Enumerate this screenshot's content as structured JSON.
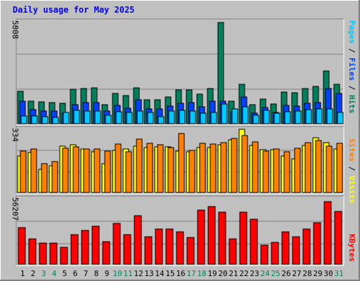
{
  "title": "Daily usage for May 2025",
  "colors": {
    "background": "#c0c0c0",
    "hits": "#00805c",
    "files": "#0040ff",
    "pages": "#00c8ff",
    "visits": "#ffff00",
    "sites": "#ff8000",
    "kbytes": "#ff0000",
    "title": "#0000ff",
    "weekend_label": "#00805c",
    "weekday_label": "#000000"
  },
  "legend": {
    "top": [
      "Pages",
      "Files",
      "Hits"
    ],
    "middle": [
      "Sites",
      "Visits"
    ],
    "bottom": [
      "KBytes"
    ]
  },
  "chart_data": [
    {
      "type": "bar",
      "panel": "hits-files-pages",
      "categories": [
        "1",
        "2",
        "3",
        "4",
        "5",
        "6",
        "7",
        "8",
        "9",
        "10",
        "11",
        "12",
        "13",
        "14",
        "15",
        "16",
        "17",
        "18",
        "19",
        "20",
        "21",
        "22",
        "23",
        "24",
        "25",
        "26",
        "27",
        "28",
        "29",
        "30",
        "31"
      ],
      "ymax_label": "5808",
      "ylim": [
        0,
        5808
      ],
      "series": [
        {
          "name": "Hits",
          "values": [
            1820,
            1260,
            1220,
            1190,
            1140,
            1920,
            1960,
            2030,
            1080,
            1700,
            1580,
            2000,
            1340,
            1350,
            1490,
            1900,
            1880,
            1660,
            1980,
            5680,
            1270,
            2200,
            1070,
            1390,
            1100,
            1770,
            1720,
            1960,
            2090,
            2960,
            2210
          ]
        },
        {
          "name": "Files",
          "values": [
            1260,
            800,
            700,
            700,
            600,
            1050,
            1170,
            1170,
            700,
            1040,
            870,
            1330,
            830,
            830,
            990,
            1140,
            1170,
            940,
            1250,
            1270,
            670,
            1520,
            600,
            890,
            620,
            1040,
            980,
            1140,
            1180,
            1980,
            1710
          ]
        },
        {
          "name": "Pages",
          "values": [
            420,
            440,
            400,
            350,
            640,
            740,
            700,
            720,
            470,
            670,
            630,
            730,
            620,
            400,
            730,
            770,
            710,
            610,
            650,
            1120,
            820,
            930,
            470,
            750,
            600,
            690,
            720,
            790,
            820,
            830,
            650
          ]
        }
      ],
      "grid": true
    },
    {
      "type": "bar",
      "panel": "visits-sites",
      "categories": [
        "1",
        "2",
        "3",
        "4",
        "5",
        "6",
        "7",
        "8",
        "9",
        "10",
        "11",
        "12",
        "13",
        "14",
        "15",
        "16",
        "17",
        "18",
        "19",
        "20",
        "21",
        "22",
        "23",
        "24",
        "25",
        "26",
        "27",
        "28",
        "29",
        "30",
        "31"
      ],
      "ymax_label": "334",
      "ylim": [
        0,
        334
      ],
      "series": [
        {
          "name": "Visits",
          "values": [
            190,
            210,
            122,
            140,
            242,
            249,
            229,
            212,
            152,
            222,
            226,
            244,
            236,
            240,
            240,
            217,
            214,
            234,
            236,
            249,
            274,
            331,
            247,
            223,
            224,
            190,
            176,
            245,
            286,
            262,
            226
          ]
        },
        {
          "name": "Sites",
          "values": [
            216,
            228,
            152,
            160,
            230,
            238,
            228,
            228,
            216,
            254,
            212,
            278,
            258,
            248,
            236,
            310,
            220,
            258,
            254,
            260,
            282,
            298,
            264,
            218,
            226,
            214,
            232,
            262,
            272,
            241,
            258
          ]
        }
      ],
      "grid": true
    },
    {
      "type": "bar",
      "panel": "kbytes",
      "categories": [
        "1",
        "2",
        "3",
        "4",
        "5",
        "6",
        "7",
        "8",
        "9",
        "10",
        "11",
        "12",
        "13",
        "14",
        "15",
        "16",
        "17",
        "18",
        "19",
        "20",
        "21",
        "22",
        "23",
        "24",
        "25",
        "26",
        "27",
        "28",
        "29",
        "30",
        "31"
      ],
      "ymax_label": "56207",
      "ylim": [
        0,
        56207
      ],
      "series": [
        {
          "name": "KBytes",
          "values": [
            31200,
            21800,
            18400,
            18000,
            14300,
            25500,
            29200,
            32400,
            19600,
            34800,
            25500,
            42000,
            23500,
            30000,
            30000,
            27500,
            23000,
            46300,
            49400,
            45000,
            22000,
            44900,
            38900,
            16100,
            19000,
            27800,
            23700,
            30300,
            35600,
            53800,
            45600
          ]
        }
      ],
      "grid": true
    }
  ],
  "x_axis": {
    "labels": [
      "1",
      "2",
      "3",
      "4",
      "5",
      "6",
      "7",
      "8",
      "9",
      "10",
      "11",
      "12",
      "13",
      "14",
      "15",
      "16",
      "17",
      "18",
      "19",
      "20",
      "21",
      "22",
      "23",
      "24",
      "25",
      "26",
      "27",
      "28",
      "29",
      "30",
      "31"
    ],
    "weekend_days": [
      "3",
      "4",
      "10",
      "11",
      "17",
      "18",
      "24",
      "25",
      "31"
    ]
  }
}
